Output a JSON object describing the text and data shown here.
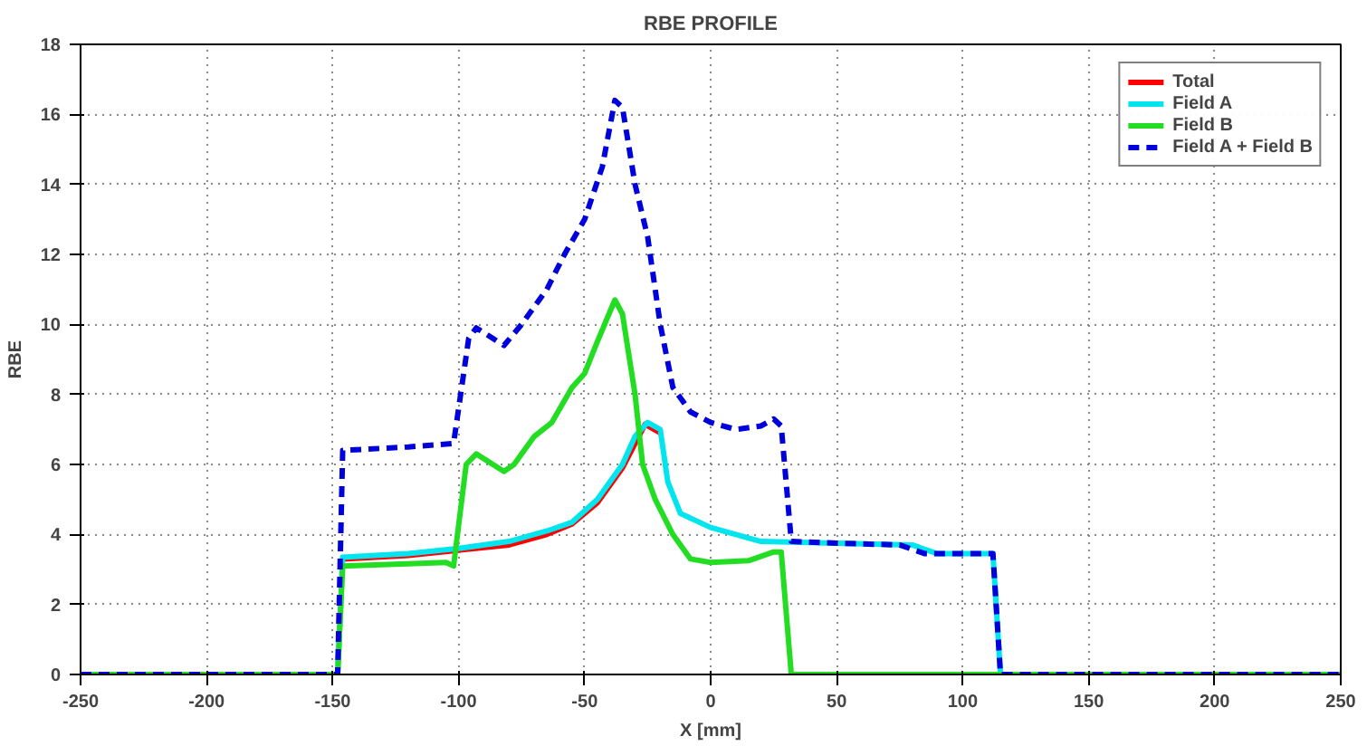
{
  "chart_data": {
    "type": "line",
    "title": "RBE PROFILE",
    "xlabel": "X [mm]",
    "ylabel": "RBE",
    "xlim": [
      -250,
      250
    ],
    "xticks": [
      -250,
      -200,
      -150,
      -100,
      -50,
      0,
      50,
      100,
      150,
      200,
      250
    ],
    "ylim": [
      0,
      18
    ],
    "yticks": [
      0,
      2,
      4,
      6,
      8,
      10,
      12,
      14,
      16,
      18
    ],
    "grid": true,
    "legend": "top right",
    "series": [
      {
        "name": "Total",
        "color": "#ff0000",
        "line_style": "solid",
        "x": [
          -146,
          -120,
          -100,
          -80,
          -65,
          -55,
          -45,
          -35,
          -30,
          -26,
          -20
        ],
        "values": [
          3.3,
          3.4,
          3.55,
          3.7,
          4.0,
          4.3,
          4.9,
          5.9,
          6.6,
          7.15,
          6.9
        ]
      },
      {
        "name": "Field A",
        "color": "#00e5ee",
        "line_style": "solid",
        "x": [
          -250,
          -148,
          -146,
          -120,
          -100,
          -80,
          -65,
          -55,
          -45,
          -35,
          -30,
          -25,
          -20,
          -17,
          -12,
          0,
          20,
          50,
          80,
          90,
          112,
          115,
          250
        ],
        "values": [
          0,
          0,
          3.35,
          3.45,
          3.6,
          3.8,
          4.1,
          4.35,
          5.0,
          6.0,
          6.8,
          7.2,
          7.0,
          5.5,
          4.6,
          4.2,
          3.8,
          3.75,
          3.7,
          3.45,
          3.45,
          0,
          0
        ]
      },
      {
        "name": "Field B",
        "color": "#22dd22",
        "line_style": "solid",
        "x": [
          -250,
          -148,
          -146,
          -105,
          -102,
          -97,
          -93,
          -82,
          -78,
          -70,
          -63,
          -55,
          -50,
          -45,
          -38,
          -35,
          -30,
          -27,
          -22,
          -15,
          -8,
          0,
          15,
          25,
          28,
          32,
          250
        ],
        "values": [
          0,
          0,
          3.1,
          3.2,
          3.1,
          6.0,
          6.3,
          5.8,
          6.0,
          6.8,
          7.2,
          8.2,
          8.6,
          9.5,
          10.7,
          10.3,
          8.0,
          6.0,
          5.0,
          4.0,
          3.3,
          3.2,
          3.25,
          3.5,
          3.5,
          0,
          0
        ]
      },
      {
        "name": "Field A + Field B",
        "color": "#0000dd",
        "line_style": "dashed",
        "x": [
          -250,
          -148,
          -146,
          -120,
          -102,
          -96,
          -93,
          -82,
          -75,
          -65,
          -58,
          -50,
          -43,
          -38,
          -35,
          -30,
          -25,
          -20,
          -15,
          -8,
          0,
          10,
          20,
          25,
          28,
          32,
          50,
          75,
          85,
          112,
          115,
          250
        ],
        "values": [
          0,
          0,
          6.4,
          6.5,
          6.6,
          9.6,
          9.9,
          9.4,
          10.0,
          11.0,
          12.0,
          13.0,
          14.5,
          16.4,
          16.2,
          14.0,
          12.5,
          10.0,
          8.2,
          7.5,
          7.2,
          7.0,
          7.1,
          7.3,
          7.1,
          3.8,
          3.75,
          3.7,
          3.45,
          3.45,
          0,
          0
        ]
      }
    ]
  }
}
